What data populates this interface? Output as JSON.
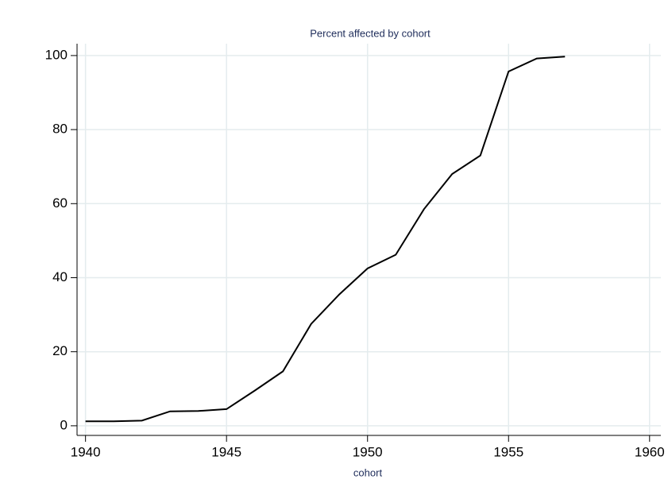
{
  "chart_data": {
    "type": "line",
    "title": "Percent affected by cohort",
    "x_label": "cohort",
    "x": [
      1940,
      1941,
      1942,
      1943,
      1944,
      1945,
      1946,
      1947,
      1948,
      1949,
      1950,
      1951,
      1952,
      1953,
      1954,
      1955,
      1956,
      1957
    ],
    "values": [
      1.2,
      1.2,
      1.4,
      3.9,
      4.0,
      4.5,
      9.5,
      14.7,
      27.5,
      35.5,
      42.5,
      46.2,
      58.5,
      68,
      73,
      95.7,
      99.2,
      99.7
    ],
    "color": "#000000",
    "xlim": [
      1939.7,
      1960.4
    ],
    "ylim": [
      -2.6,
      103.2
    ],
    "xticks": [
      1940,
      1945,
      1950,
      1955,
      1960
    ],
    "yticks": [
      0,
      20,
      40,
      60,
      80,
      100
    ],
    "grid": true
  }
}
